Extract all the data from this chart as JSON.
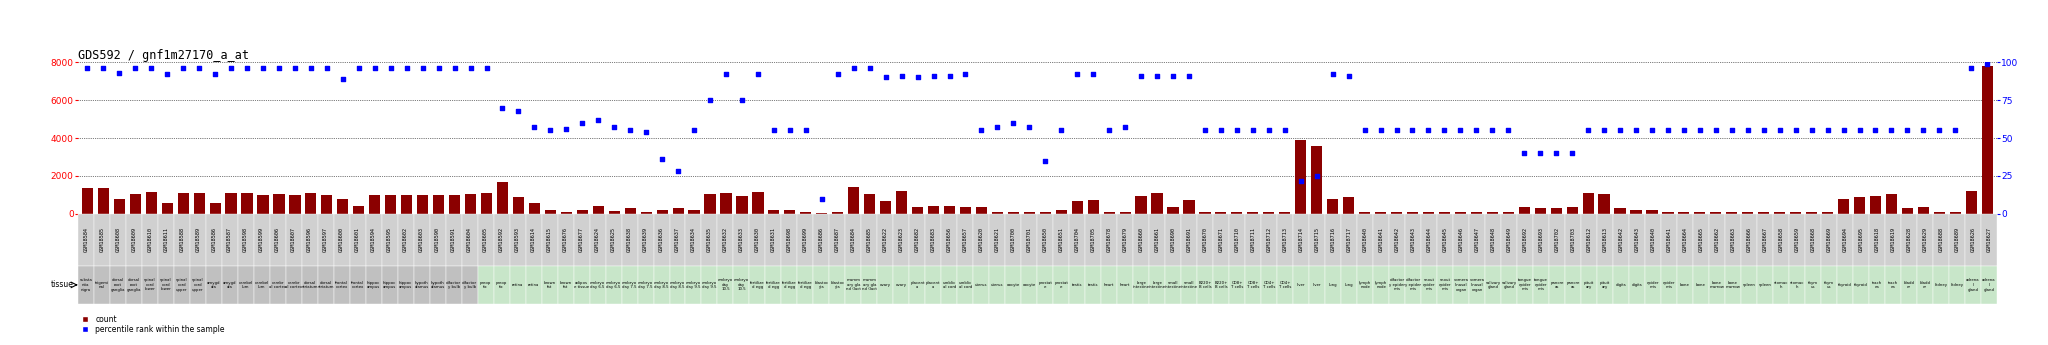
{
  "title": "GDS592 / gnf1m27170_a_at",
  "ylim_left": [
    0,
    8000
  ],
  "ylim_right": [
    0,
    100
  ],
  "yticks_left": [
    0,
    2000,
    4000,
    6000,
    8000
  ],
  "yticks_right": [
    0,
    25,
    50,
    75,
    100
  ],
  "samples": [
    {
      "gsm": "GSM18584",
      "tissue": "substa\nntia\nnigra",
      "count": 1350,
      "pct": 96,
      "tc": "#c0c0c0"
    },
    {
      "gsm": "GSM18585",
      "tissue": "trigemi\nnal",
      "count": 1350,
      "pct": 96,
      "tc": "#c0c0c0"
    },
    {
      "gsm": "GSM18608",
      "tissue": "dorsal\nroot\nganglia",
      "count": 800,
      "pct": 93,
      "tc": "#c0c0c0"
    },
    {
      "gsm": "GSM18609",
      "tissue": "dorsal\nroot\nganglia",
      "count": 1050,
      "pct": 96,
      "tc": "#c0c0c0"
    },
    {
      "gsm": "GSM18610",
      "tissue": "spinal\ncord\nlower",
      "count": 1150,
      "pct": 96,
      "tc": "#c0c0c0"
    },
    {
      "gsm": "GSM18611",
      "tissue": "spinal\ncord\nlower",
      "count": 600,
      "pct": 92,
      "tc": "#c0c0c0"
    },
    {
      "gsm": "GSM18588",
      "tissue": "spinal\ncord\nupper",
      "count": 1100,
      "pct": 96,
      "tc": "#c0c0c0"
    },
    {
      "gsm": "GSM18589",
      "tissue": "spinal\ncord\nupper",
      "count": 1100,
      "pct": 96,
      "tc": "#c0c0c0"
    },
    {
      "gsm": "GSM18586",
      "tissue": "amygd\nala",
      "count": 600,
      "pct": 92,
      "tc": "#c0c0c0"
    },
    {
      "gsm": "GSM18587",
      "tissue": "amygd\nala",
      "count": 1100,
      "pct": 96,
      "tc": "#c0c0c0"
    },
    {
      "gsm": "GSM18598",
      "tissue": "cerebel\nlum",
      "count": 1100,
      "pct": 96,
      "tc": "#c0c0c0"
    },
    {
      "gsm": "GSM18599",
      "tissue": "cerebel\nlum",
      "count": 1000,
      "pct": 96,
      "tc": "#c0c0c0"
    },
    {
      "gsm": "GSM18606",
      "tissue": "cerebr\nal cortex",
      "count": 1050,
      "pct": 96,
      "tc": "#c0c0c0"
    },
    {
      "gsm": "GSM18607",
      "tissue": "cerebr\nal cortex",
      "count": 1000,
      "pct": 96,
      "tc": "#c0c0c0"
    },
    {
      "gsm": "GSM18596",
      "tissue": "dorsal\nstriatum",
      "count": 1100,
      "pct": 96,
      "tc": "#c0c0c0"
    },
    {
      "gsm": "GSM18597",
      "tissue": "dorsal\nstriatum",
      "count": 1000,
      "pct": 96,
      "tc": "#c0c0c0"
    },
    {
      "gsm": "GSM18600",
      "tissue": "frontal\ncortex",
      "count": 800,
      "pct": 89,
      "tc": "#c0c0c0"
    },
    {
      "gsm": "GSM18601",
      "tissue": "frontal\ncortex",
      "count": 400,
      "pct": 96,
      "tc": "#c0c0c0"
    },
    {
      "gsm": "GSM18594",
      "tissue": "hippoc\nampus",
      "count": 1000,
      "pct": 96,
      "tc": "#c0c0c0"
    },
    {
      "gsm": "GSM18595",
      "tissue": "hippoc\nampus",
      "count": 1000,
      "pct": 96,
      "tc": "#c0c0c0"
    },
    {
      "gsm": "GSM18602",
      "tissue": "hippoc\nampus",
      "count": 1000,
      "pct": 96,
      "tc": "#c0c0c0"
    },
    {
      "gsm": "GSM18603",
      "tissue": "hypoth\nalamus",
      "count": 1000,
      "pct": 96,
      "tc": "#c0c0c0"
    },
    {
      "gsm": "GSM18590",
      "tissue": "hypoth\nalamus",
      "count": 1000,
      "pct": 96,
      "tc": "#c0c0c0"
    },
    {
      "gsm": "GSM18591",
      "tissue": "olfactor\ny bulb",
      "count": 1000,
      "pct": 96,
      "tc": "#c0c0c0"
    },
    {
      "gsm": "GSM18604",
      "tissue": "olfactor\ny bulb",
      "count": 1050,
      "pct": 96,
      "tc": "#c0c0c0"
    },
    {
      "gsm": "GSM18605",
      "tissue": "preop\ntic",
      "count": 1100,
      "pct": 96,
      "tc": "#c8e6c9"
    },
    {
      "gsm": "GSM18592",
      "tissue": "preop\ntic",
      "count": 1700,
      "pct": 70,
      "tc": "#c8e6c9"
    },
    {
      "gsm": "GSM18593",
      "tissue": "retina",
      "count": 900,
      "pct": 68,
      "tc": "#c8e6c9"
    },
    {
      "gsm": "GSM18614",
      "tissue": "retina",
      "count": 600,
      "pct": 57,
      "tc": "#c8e6c9"
    },
    {
      "gsm": "GSM18615",
      "tissue": "brown\nfat",
      "count": 200,
      "pct": 55,
      "tc": "#c8e6c9"
    },
    {
      "gsm": "GSM18676",
      "tissue": "brown\nfat",
      "count": 100,
      "pct": 56,
      "tc": "#c8e6c9"
    },
    {
      "gsm": "GSM18677",
      "tissue": "adipos\ne tissue",
      "count": 200,
      "pct": 60,
      "tc": "#c8e6c9"
    },
    {
      "gsm": "GSM18624",
      "tissue": "embryo\nday 6.5",
      "count": 400,
      "pct": 62,
      "tc": "#c8e6c9"
    },
    {
      "gsm": "GSM18625",
      "tissue": "embryo\nday 6.5",
      "count": 150,
      "pct": 57,
      "tc": "#c8e6c9"
    },
    {
      "gsm": "GSM18638",
      "tissue": "embryo\nday 7.5",
      "count": 300,
      "pct": 55,
      "tc": "#c8e6c9"
    },
    {
      "gsm": "GSM18639",
      "tissue": "embryo\nday 7.5",
      "count": 100,
      "pct": 54,
      "tc": "#c8e6c9"
    },
    {
      "gsm": "GSM18636",
      "tissue": "embryo\nday 8.5",
      "count": 200,
      "pct": 36,
      "tc": "#c8e6c9"
    },
    {
      "gsm": "GSM18637",
      "tissue": "embryo\nday 8.5",
      "count": 300,
      "pct": 28,
      "tc": "#c8e6c9"
    },
    {
      "gsm": "GSM18634",
      "tissue": "embryo\nday 9.5",
      "count": 200,
      "pct": 55,
      "tc": "#c8e6c9"
    },
    {
      "gsm": "GSM18635",
      "tissue": "embryo\nday 9.5",
      "count": 1050,
      "pct": 75,
      "tc": "#c8e6c9"
    },
    {
      "gsm": "GSM18632",
      "tissue": "embryo\nday\n10.5",
      "count": 1100,
      "pct": 92,
      "tc": "#c8e6c9"
    },
    {
      "gsm": "GSM18633",
      "tissue": "embryo\nday\n10.5",
      "count": 950,
      "pct": 75,
      "tc": "#c8e6c9"
    },
    {
      "gsm": "GSM18630",
      "tissue": "fertilize\nd egg",
      "count": 1150,
      "pct": 92,
      "tc": "#c8e6c9"
    },
    {
      "gsm": "GSM18631",
      "tissue": "fertilize\nd egg",
      "count": 200,
      "pct": 55,
      "tc": "#c8e6c9"
    },
    {
      "gsm": "GSM18698",
      "tissue": "fertilize\nd egg",
      "count": 200,
      "pct": 55,
      "tc": "#c8e6c9"
    },
    {
      "gsm": "GSM18699",
      "tissue": "fertilize\nd egg",
      "count": 100,
      "pct": 55,
      "tc": "#c8e6c9"
    },
    {
      "gsm": "GSM18686",
      "tissue": "blastoc\nyts",
      "count": 50,
      "pct": 10,
      "tc": "#c8e6c9"
    },
    {
      "gsm": "GSM18687",
      "tissue": "blastoc\nyts",
      "count": 100,
      "pct": 92,
      "tc": "#c8e6c9"
    },
    {
      "gsm": "GSM18684",
      "tissue": "mamm\nary gla\nnd (lact",
      "count": 1400,
      "pct": 96,
      "tc": "#c8e6c9"
    },
    {
      "gsm": "GSM18685",
      "tissue": "mamm\nary gla\nnd (lact",
      "count": 1050,
      "pct": 96,
      "tc": "#c8e6c9"
    },
    {
      "gsm": "GSM18622",
      "tissue": "ovary",
      "count": 700,
      "pct": 90,
      "tc": "#c8e6c9"
    },
    {
      "gsm": "GSM18623",
      "tissue": "ovary",
      "count": 1200,
      "pct": 91,
      "tc": "#c8e6c9"
    },
    {
      "gsm": "GSM18682",
      "tissue": "placent\na",
      "count": 350,
      "pct": 90,
      "tc": "#c8e6c9"
    },
    {
      "gsm": "GSM18683",
      "tissue": "placent\na",
      "count": 400,
      "pct": 91,
      "tc": "#c8e6c9"
    },
    {
      "gsm": "GSM18656",
      "tissue": "umblic\nal cord",
      "count": 400,
      "pct": 91,
      "tc": "#c8e6c9"
    },
    {
      "gsm": "GSM18657",
      "tissue": "umblic\nal cord",
      "count": 350,
      "pct": 92,
      "tc": "#c8e6c9"
    },
    {
      "gsm": "GSM18620",
      "tissue": "uterus",
      "count": 350,
      "pct": 55,
      "tc": "#c8e6c9"
    },
    {
      "gsm": "GSM18621",
      "tissue": "uterus",
      "count": 100,
      "pct": 57,
      "tc": "#c8e6c9"
    },
    {
      "gsm": "GSM18700",
      "tissue": "oocyte",
      "count": 100,
      "pct": 60,
      "tc": "#c8e6c9"
    },
    {
      "gsm": "GSM18701",
      "tissue": "oocyte",
      "count": 100,
      "pct": 57,
      "tc": "#c8e6c9"
    },
    {
      "gsm": "GSM18650",
      "tissue": "prostat\ne",
      "count": 100,
      "pct": 35,
      "tc": "#c8e6c9"
    },
    {
      "gsm": "GSM18651",
      "tissue": "prostat\ne",
      "count": 200,
      "pct": 55,
      "tc": "#c8e6c9"
    },
    {
      "gsm": "GSM18704",
      "tissue": "testis",
      "count": 700,
      "pct": 92,
      "tc": "#c8e6c9"
    },
    {
      "gsm": "GSM18705",
      "tissue": "testis",
      "count": 750,
      "pct": 92,
      "tc": "#c8e6c9"
    },
    {
      "gsm": "GSM18678",
      "tissue": "heart",
      "count": 100,
      "pct": 55,
      "tc": "#c8e6c9"
    },
    {
      "gsm": "GSM18679",
      "tissue": "heart",
      "count": 100,
      "pct": 57,
      "tc": "#c8e6c9"
    },
    {
      "gsm": "GSM18660",
      "tissue": "large\nintestine",
      "count": 950,
      "pct": 91,
      "tc": "#c8e6c9"
    },
    {
      "gsm": "GSM18661",
      "tissue": "large\nintestine",
      "count": 1100,
      "pct": 91,
      "tc": "#c8e6c9"
    },
    {
      "gsm": "GSM18690",
      "tissue": "small\nintestine",
      "count": 350,
      "pct": 91,
      "tc": "#c8e6c9"
    },
    {
      "gsm": "GSM18691",
      "tissue": "small\nintestine",
      "count": 750,
      "pct": 91,
      "tc": "#c8e6c9"
    },
    {
      "gsm": "GSM18670",
      "tissue": "B220+\nB cells",
      "count": 100,
      "pct": 55,
      "tc": "#c8e6c9"
    },
    {
      "gsm": "GSM18671",
      "tissue": "B220+\nB cells",
      "count": 100,
      "pct": 55,
      "tc": "#c8e6c9"
    },
    {
      "gsm": "GSM18710",
      "tissue": "CD8+\nT cells",
      "count": 100,
      "pct": 55,
      "tc": "#c8e6c9"
    },
    {
      "gsm": "GSM18711",
      "tissue": "CD8+\nT cells",
      "count": 100,
      "pct": 55,
      "tc": "#c8e6c9"
    },
    {
      "gsm": "GSM18712",
      "tissue": "CD4+\nT cells",
      "count": 100,
      "pct": 55,
      "tc": "#c8e6c9"
    },
    {
      "gsm": "GSM18713",
      "tissue": "CD4+\nT cells",
      "count": 100,
      "pct": 55,
      "tc": "#c8e6c9"
    },
    {
      "gsm": "GSM18714",
      "tissue": "liver",
      "count": 3900,
      "pct": 22,
      "tc": "#c8e6c9"
    },
    {
      "gsm": "GSM18715",
      "tissue": "liver",
      "count": 3600,
      "pct": 25,
      "tc": "#c8e6c9"
    },
    {
      "gsm": "GSM18716",
      "tissue": "lung",
      "count": 800,
      "pct": 92,
      "tc": "#c8e6c9"
    },
    {
      "gsm": "GSM18717",
      "tissue": "lung",
      "count": 900,
      "pct": 91,
      "tc": "#c8e6c9"
    },
    {
      "gsm": "GSM18640",
      "tissue": "lymph\nnode",
      "count": 100,
      "pct": 55,
      "tc": "#c8e6c9"
    },
    {
      "gsm": "GSM18641",
      "tissue": "lymph\nnode",
      "count": 100,
      "pct": 55,
      "tc": "#c8e6c9"
    },
    {
      "gsm": "GSM18642",
      "tissue": "olfactor\ny epider\nmis",
      "count": 100,
      "pct": 55,
      "tc": "#c8e6c9"
    },
    {
      "gsm": "GSM18643",
      "tissue": "olfactor\ny epider\nmis",
      "count": 100,
      "pct": 55,
      "tc": "#c8e6c9"
    },
    {
      "gsm": "GSM18644",
      "tissue": "snout\nepider\nmis",
      "count": 100,
      "pct": 55,
      "tc": "#c8e6c9"
    },
    {
      "gsm": "GSM18645",
      "tissue": "snout\nepider\nmis",
      "count": 100,
      "pct": 55,
      "tc": "#c8e6c9"
    },
    {
      "gsm": "GSM18646",
      "tissue": "vomera\nlinasal\norgan",
      "count": 100,
      "pct": 55,
      "tc": "#c8e6c9"
    },
    {
      "gsm": "GSM18647",
      "tissue": "vomera\nlinasal\norgan",
      "count": 100,
      "pct": 55,
      "tc": "#c8e6c9"
    },
    {
      "gsm": "GSM18648",
      "tissue": "salivary\ngland",
      "count": 100,
      "pct": 55,
      "tc": "#c8e6c9"
    },
    {
      "gsm": "GSM18649",
      "tissue": "salivary\ngland",
      "count": 100,
      "pct": 55,
      "tc": "#c8e6c9"
    },
    {
      "gsm": "GSM18692",
      "tissue": "tongue\nepider\nmis",
      "count": 350,
      "pct": 40,
      "tc": "#c8e6c9"
    },
    {
      "gsm": "GSM18693",
      "tissue": "tongue\nepider\nmis",
      "count": 300,
      "pct": 40,
      "tc": "#c8e6c9"
    },
    {
      "gsm": "GSM18702",
      "tissue": "pancre\nas",
      "count": 300,
      "pct": 40,
      "tc": "#c8e6c9"
    },
    {
      "gsm": "GSM18703",
      "tissue": "pancre\nas",
      "count": 350,
      "pct": 40,
      "tc": "#c8e6c9"
    },
    {
      "gsm": "GSM18612",
      "tissue": "pituit\nary",
      "count": 1100,
      "pct": 55,
      "tc": "#c8e6c9"
    },
    {
      "gsm": "GSM18613",
      "tissue": "pituit\nary",
      "count": 1050,
      "pct": 55,
      "tc": "#c8e6c9"
    },
    {
      "gsm": "GSM18642",
      "tissue": "digits",
      "count": 300,
      "pct": 55,
      "tc": "#c8e6c9"
    },
    {
      "gsm": "GSM18643",
      "tissue": "digits",
      "count": 200,
      "pct": 55,
      "tc": "#c8e6c9"
    },
    {
      "gsm": "GSM18640",
      "tissue": "epider\nmis",
      "count": 200,
      "pct": 55,
      "tc": "#c8e6c9"
    },
    {
      "gsm": "GSM18641",
      "tissue": "epider\nmis",
      "count": 100,
      "pct": 55,
      "tc": "#c8e6c9"
    },
    {
      "gsm": "GSM18664",
      "tissue": "bone",
      "count": 100,
      "pct": 55,
      "tc": "#c8e6c9"
    },
    {
      "gsm": "GSM18665",
      "tissue": "bone",
      "count": 100,
      "pct": 55,
      "tc": "#c8e6c9"
    },
    {
      "gsm": "GSM18662",
      "tissue": "bone\nmarrow",
      "count": 100,
      "pct": 55,
      "tc": "#c8e6c9"
    },
    {
      "gsm": "GSM18663",
      "tissue": "bone\nmarrow",
      "count": 100,
      "pct": 55,
      "tc": "#c8e6c9"
    },
    {
      "gsm": "GSM18666",
      "tissue": "spleen",
      "count": 100,
      "pct": 55,
      "tc": "#c8e6c9"
    },
    {
      "gsm": "GSM18667",
      "tissue": "spleen",
      "count": 100,
      "pct": 55,
      "tc": "#c8e6c9"
    },
    {
      "gsm": "GSM18658",
      "tissue": "stomac\nh",
      "count": 100,
      "pct": 55,
      "tc": "#c8e6c9"
    },
    {
      "gsm": "GSM18659",
      "tissue": "stomac\nh",
      "count": 100,
      "pct": 55,
      "tc": "#c8e6c9"
    },
    {
      "gsm": "GSM18668",
      "tissue": "thym\nus",
      "count": 100,
      "pct": 55,
      "tc": "#c8e6c9"
    },
    {
      "gsm": "GSM18669",
      "tissue": "thym\nus",
      "count": 100,
      "pct": 55,
      "tc": "#c8e6c9"
    },
    {
      "gsm": "GSM18694",
      "tissue": "thyroid",
      "count": 800,
      "pct": 55,
      "tc": "#c8e6c9"
    },
    {
      "gsm": "GSM18695",
      "tissue": "thyroid",
      "count": 900,
      "pct": 55,
      "tc": "#c8e6c9"
    },
    {
      "gsm": "GSM18618",
      "tissue": "trach\nea",
      "count": 950,
      "pct": 55,
      "tc": "#c8e6c9"
    },
    {
      "gsm": "GSM18619",
      "tissue": "trach\nea",
      "count": 1050,
      "pct": 55,
      "tc": "#c8e6c9"
    },
    {
      "gsm": "GSM18628",
      "tissue": "bladd\ner",
      "count": 300,
      "pct": 55,
      "tc": "#c8e6c9"
    },
    {
      "gsm": "GSM18629",
      "tissue": "bladd\ner",
      "count": 350,
      "pct": 55,
      "tc": "#c8e6c9"
    },
    {
      "gsm": "GSM18688",
      "tissue": "kidney",
      "count": 100,
      "pct": 55,
      "tc": "#c8e6c9"
    },
    {
      "gsm": "GSM18689",
      "tissue": "kidney",
      "count": 100,
      "pct": 55,
      "tc": "#c8e6c9"
    },
    {
      "gsm": "GSM18626",
      "tissue": "adrena\nl\ngland",
      "count": 1200,
      "pct": 96,
      "tc": "#c8e6c9"
    },
    {
      "gsm": "GSM18627",
      "tissue": "adrena\nl\ngland",
      "count": 7800,
      "pct": 99,
      "tc": "#c8e6c9"
    }
  ]
}
